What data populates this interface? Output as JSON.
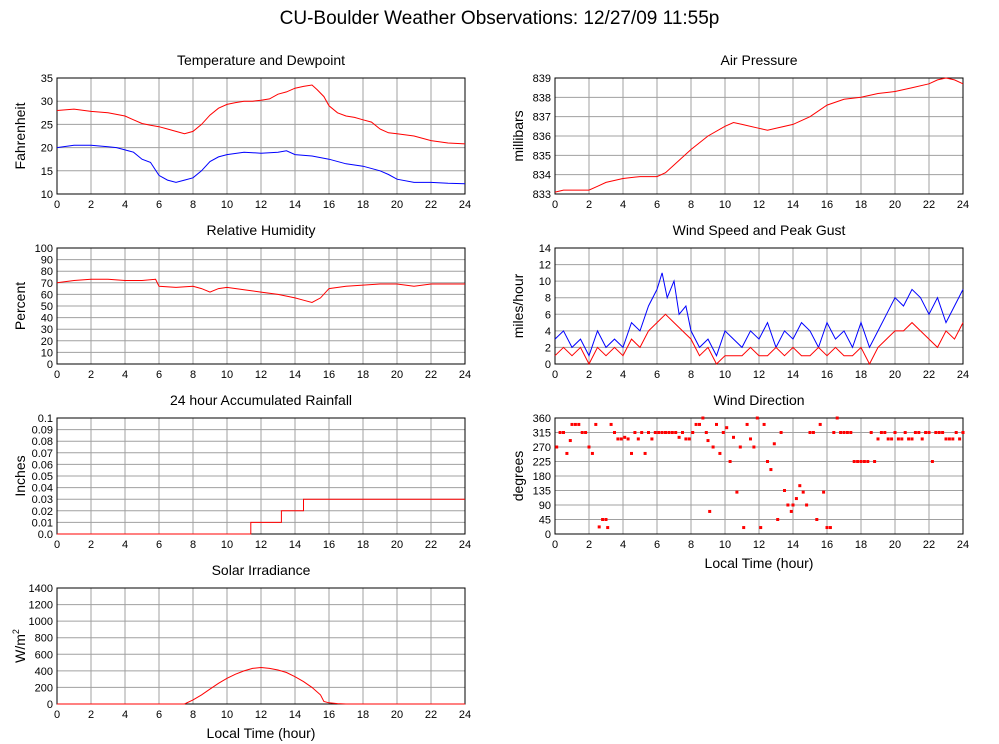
{
  "title": "CU-Boulder Weather Observations: 12/27/09 11:55p",
  "colors": {
    "red": "#ff0000",
    "blue": "#0000ff",
    "grid": "#a0a0a0",
    "frame": "#000000"
  },
  "chart_data": [
    {
      "id": "temperature",
      "type": "line",
      "title": "Temperature and Dewpoint",
      "xlabel": "",
      "ylabel": "Fahrenheit",
      "xlim": [
        0,
        24
      ],
      "ylim": [
        10,
        35
      ],
      "xticks": [
        0,
        2,
        4,
        6,
        8,
        10,
        12,
        14,
        16,
        18,
        20,
        22,
        24
      ],
      "yticks": [
        10,
        15,
        20,
        25,
        30,
        35
      ],
      "grid": true,
      "series": [
        {
          "color": "#ff0000",
          "x": [
            0,
            1,
            2,
            3,
            4,
            4.5,
            5,
            5.5,
            6,
            6.5,
            7,
            7.5,
            8,
            8.5,
            9,
            9.5,
            10,
            10.5,
            11,
            11.5,
            12,
            12.5,
            13,
            13.5,
            14,
            14.5,
            15,
            15.3,
            15.7,
            16,
            16.5,
            17,
            17.5,
            18,
            18.5,
            19,
            19.5,
            20,
            21,
            22,
            23,
            24
          ],
          "y": [
            28,
            28.3,
            27.8,
            27.5,
            26.8,
            26,
            25.2,
            24.8,
            24.5,
            24,
            23.5,
            23,
            23.5,
            25,
            27,
            28.5,
            29.3,
            29.7,
            30,
            30,
            30.2,
            30.5,
            31.5,
            32,
            32.8,
            33.2,
            33.5,
            32.5,
            31,
            29,
            27.5,
            26.8,
            26.5,
            26,
            25.5,
            24,
            23.2,
            23,
            22.5,
            21.5,
            21,
            20.8
          ]
        },
        {
          "color": "#0000ff",
          "x": [
            0,
            1,
            2,
            3,
            3.5,
            4,
            4.5,
            5,
            5.5,
            6,
            6.5,
            7,
            7.5,
            8,
            8.5,
            9,
            9.5,
            10,
            11,
            12,
            13,
            13.5,
            14,
            15,
            16,
            17,
            18,
            19,
            19.5,
            20,
            21,
            22,
            23,
            24
          ],
          "y": [
            20,
            20.5,
            20.5,
            20.2,
            20,
            19.5,
            19,
            17.5,
            16.8,
            14,
            13,
            12.5,
            13,
            13.5,
            15,
            17,
            18,
            18.5,
            19,
            18.8,
            19,
            19.3,
            18.5,
            18.2,
            17.5,
            16.5,
            16,
            15,
            14.2,
            13.2,
            12.5,
            12.5,
            12.3,
            12.2
          ]
        }
      ]
    },
    {
      "id": "pressure",
      "type": "line",
      "title": "Air Pressure",
      "xlabel": "",
      "ylabel": "millibars",
      "xlim": [
        0,
        24
      ],
      "ylim": [
        833,
        839
      ],
      "xticks": [
        0,
        2,
        4,
        6,
        8,
        10,
        12,
        14,
        16,
        18,
        20,
        22,
        24
      ],
      "yticks": [
        833,
        834,
        835,
        836,
        837,
        838,
        839
      ],
      "grid": true,
      "series": [
        {
          "color": "#ff0000",
          "x": [
            0,
            0.5,
            1,
            2,
            2.5,
            3,
            4,
            5,
            6,
            6.5,
            7,
            8,
            9,
            10,
            10.5,
            11,
            12,
            12.5,
            13,
            14,
            15,
            16,
            17,
            18,
            19,
            20,
            21,
            22,
            22.5,
            23,
            23.5,
            24
          ],
          "y": [
            833.1,
            833.2,
            833.2,
            833.2,
            833.4,
            833.6,
            833.8,
            833.9,
            833.9,
            834.1,
            834.5,
            835.3,
            836,
            836.5,
            836.7,
            836.6,
            836.4,
            836.3,
            836.4,
            836.6,
            837,
            837.6,
            837.9,
            838,
            838.2,
            838.3,
            838.5,
            838.7,
            838.9,
            839,
            838.9,
            838.7
          ]
        }
      ]
    },
    {
      "id": "humidity",
      "type": "line",
      "title": "Relative Humidity",
      "xlabel": "",
      "ylabel": "Percent",
      "xlim": [
        0,
        24
      ],
      "ylim": [
        0,
        100
      ],
      "xticks": [
        0,
        2,
        4,
        6,
        8,
        10,
        12,
        14,
        16,
        18,
        20,
        22,
        24
      ],
      "yticks": [
        0,
        10,
        20,
        30,
        40,
        50,
        60,
        70,
        80,
        90,
        100
      ],
      "grid": true,
      "series": [
        {
          "color": "#ff0000",
          "x": [
            0,
            0.5,
            1,
            2,
            3,
            4,
            5,
            5.8,
            6,
            7,
            8,
            8.5,
            9,
            9.5,
            10,
            11,
            12,
            13,
            14,
            14.5,
            15,
            15.5,
            16,
            17,
            18,
            19,
            20,
            21,
            22,
            23,
            24
          ],
          "y": [
            70,
            71,
            72,
            73,
            73,
            72,
            72,
            73,
            67,
            66,
            67,
            65,
            62,
            65,
            66,
            64,
            62,
            60,
            57,
            55,
            53,
            57,
            65,
            67,
            68,
            69,
            69,
            67,
            69,
            69,
            69
          ]
        }
      ]
    },
    {
      "id": "wind-speed",
      "type": "line",
      "title": "Wind Speed and Peak Gust",
      "xlabel": "",
      "ylabel": "miles/hour",
      "xlim": [
        0,
        24
      ],
      "ylim": [
        0,
        14
      ],
      "xticks": [
        0,
        2,
        4,
        6,
        8,
        10,
        12,
        14,
        16,
        18,
        20,
        22,
        24
      ],
      "yticks": [
        0,
        2,
        4,
        6,
        8,
        10,
        12,
        14
      ],
      "grid": true,
      "series": [
        {
          "color": "#0000ff",
          "x": [
            0,
            0.5,
            1,
            1.5,
            2,
            2.5,
            3,
            3.5,
            4,
            4.5,
            5,
            5.5,
            6,
            6.3,
            6.6,
            7,
            7.3,
            7.7,
            8,
            8.5,
            9,
            9.5,
            10,
            10.5,
            11,
            11.5,
            12,
            12.5,
            13,
            13.5,
            14,
            14.5,
            15,
            15.5,
            16,
            16.5,
            17,
            17.5,
            18,
            18.5,
            19,
            19.5,
            20,
            20.5,
            21,
            21.5,
            22,
            22.5,
            23,
            23.5,
            24
          ],
          "y": [
            3,
            4,
            2,
            3,
            1,
            4,
            2,
            3,
            2,
            5,
            4,
            7,
            9,
            11,
            8,
            10,
            6,
            7,
            4,
            2,
            3,
            1,
            4,
            3,
            2,
            4,
            3,
            5,
            2,
            4,
            3,
            5,
            4,
            2,
            5,
            3,
            4,
            2,
            5,
            2,
            4,
            6,
            8,
            7,
            9,
            8,
            6,
            8,
            5,
            7,
            9
          ]
        },
        {
          "color": "#ff0000",
          "x": [
            0,
            0.5,
            1,
            1.5,
            2,
            2.5,
            3,
            3.5,
            4,
            4.5,
            5,
            5.5,
            6,
            6.5,
            7,
            7.5,
            8,
            8.5,
            9,
            9.5,
            10,
            10.5,
            11,
            11.5,
            12,
            12.5,
            13,
            13.5,
            14,
            14.5,
            15,
            15.5,
            16,
            16.5,
            17,
            17.5,
            18,
            18.5,
            19,
            19.5,
            20,
            20.5,
            21,
            21.5,
            22,
            22.5,
            23,
            23.5,
            24
          ],
          "y": [
            1,
            2,
            1,
            2,
            0,
            2,
            1,
            2,
            1,
            3,
            2,
            4,
            5,
            6,
            5,
            4,
            3,
            1,
            2,
            0,
            1,
            1,
            1,
            2,
            1,
            1,
            2,
            1,
            2,
            1,
            1,
            2,
            1,
            2,
            1,
            1,
            2,
            0,
            2,
            3,
            4,
            4,
            5,
            4,
            3,
            2,
            4,
            3,
            5
          ]
        }
      ]
    },
    {
      "id": "rainfall",
      "type": "line",
      "title": "24 hour Accumulated Rainfall",
      "xlabel": "",
      "ylabel": "Inches",
      "xlim": [
        0,
        24
      ],
      "ylim": [
        0,
        0.1
      ],
      "xticks": [
        0,
        2,
        4,
        6,
        8,
        10,
        12,
        14,
        16,
        18,
        20,
        22,
        24
      ],
      "yticks": [
        "0.0",
        "0.01",
        "0.02",
        "0.03",
        "0.04",
        "0.05",
        "0.06",
        "0.07",
        "0.08",
        "0.09",
        "0.1"
      ],
      "grid": true,
      "series": [
        {
          "color": "#ff0000",
          "x": [
            0,
            11.4,
            11.4,
            13.2,
            13.2,
            14.5,
            14.5,
            24
          ],
          "y": [
            0,
            0,
            0.01,
            0.01,
            0.02,
            0.02,
            0.03,
            0.03
          ]
        }
      ]
    },
    {
      "id": "wind-direction",
      "type": "scatter",
      "title": "Wind Direction",
      "xlabel": "Local Time (hour)",
      "ylabel": "degrees",
      "xlim": [
        0,
        24
      ],
      "ylim": [
        0,
        360
      ],
      "xticks": [
        0,
        2,
        4,
        6,
        8,
        10,
        12,
        14,
        16,
        18,
        20,
        22,
        24
      ],
      "yticks": [
        0,
        45,
        90,
        135,
        180,
        225,
        270,
        315,
        360
      ],
      "grid": true,
      "series": [
        {
          "color": "#ff0000",
          "x": [
            0.1,
            0.3,
            0.5,
            0.7,
            0.9,
            1.0,
            1.2,
            1.4,
            1.6,
            1.8,
            2.0,
            2.2,
            2.4,
            2.6,
            2.8,
            3.0,
            3.1,
            3.3,
            3.5,
            3.7,
            3.9,
            4.1,
            4.3,
            4.5,
            4.7,
            4.9,
            5.1,
            5.3,
            5.5,
            5.7,
            5.9,
            6.1,
            6.3,
            6.5,
            6.7,
            6.9,
            7.1,
            7.3,
            7.5,
            7.7,
            7.9,
            8.1,
            8.3,
            8.5,
            8.7,
            8.9,
            9.0,
            9.1,
            9.3,
            9.5,
            9.7,
            9.9,
            10.1,
            10.3,
            10.5,
            10.7,
            10.9,
            11.1,
            11.3,
            11.5,
            11.7,
            11.9,
            12.1,
            12.3,
            12.5,
            12.7,
            12.9,
            13.1,
            13.3,
            13.5,
            13.7,
            13.9,
            14.0,
            14.2,
            14.4,
            14.6,
            14.8,
            15.0,
            15.2,
            15.4,
            15.6,
            15.8,
            16.0,
            16.2,
            16.4,
            16.6,
            16.8,
            17.0,
            17.2,
            17.4,
            17.6,
            17.8,
            18.0,
            18.2,
            18.4,
            18.6,
            18.8,
            19.0,
            19.2,
            19.4,
            19.6,
            19.8,
            20.0,
            20.2,
            20.4,
            20.6,
            20.8,
            21.0,
            21.2,
            21.4,
            21.6,
            21.8,
            22.0,
            22.2,
            22.4,
            22.6,
            22.8,
            23.0,
            23.2,
            23.4,
            23.6,
            23.8,
            24.0
          ],
          "y": [
            270,
            315,
            315,
            250,
            290,
            340,
            340,
            340,
            315,
            315,
            270,
            250,
            340,
            22,
            45,
            45,
            20,
            340,
            315,
            295,
            295,
            300,
            295,
            250,
            315,
            295,
            315,
            250,
            315,
            295,
            315,
            315,
            315,
            315,
            315,
            315,
            315,
            300,
            315,
            295,
            295,
            315,
            340,
            340,
            360,
            315,
            290,
            70,
            270,
            340,
            250,
            315,
            330,
            225,
            300,
            130,
            270,
            20,
            340,
            295,
            270,
            360,
            20,
            340,
            225,
            200,
            280,
            45,
            315,
            135,
            90,
            70,
            90,
            110,
            150,
            130,
            90,
            315,
            315,
            45,
            340,
            130,
            20,
            20,
            315,
            360,
            315,
            315,
            315,
            315,
            225,
            225,
            225,
            225,
            225,
            315,
            225,
            295,
            315,
            315,
            295,
            295,
            315,
            295,
            295,
            315,
            295,
            295,
            315,
            315,
            295,
            315,
            315,
            225,
            315,
            315,
            315,
            295,
            295,
            295,
            315,
            295,
            315
          ]
        }
      ]
    },
    {
      "id": "solar",
      "type": "area",
      "title": "Solar Irradiance",
      "xlabel": "Local Time (hour)",
      "ylabel_main": "W/m",
      "ylabel_sup": "2",
      "xlim": [
        0,
        24
      ],
      "ylim": [
        0,
        1400
      ],
      "xticks": [
        0,
        2,
        4,
        6,
        8,
        10,
        12,
        14,
        16,
        18,
        20,
        22,
        24
      ],
      "yticks": [
        0,
        200,
        400,
        600,
        800,
        1000,
        1200,
        1400
      ],
      "grid": true,
      "series": [
        {
          "color": "#ff0000",
          "x": [
            0,
            7.5,
            8,
            8.5,
            9,
            9.5,
            10,
            10.5,
            11,
            11.5,
            12,
            12.5,
            13,
            13.5,
            14,
            14.5,
            15,
            15.5,
            15.7,
            16,
            16.5,
            17,
            24
          ],
          "y": [
            0,
            0,
            50,
            110,
            180,
            250,
            310,
            360,
            400,
            430,
            440,
            430,
            410,
            380,
            330,
            270,
            200,
            110,
            30,
            15,
            5,
            0,
            0
          ]
        }
      ]
    }
  ]
}
